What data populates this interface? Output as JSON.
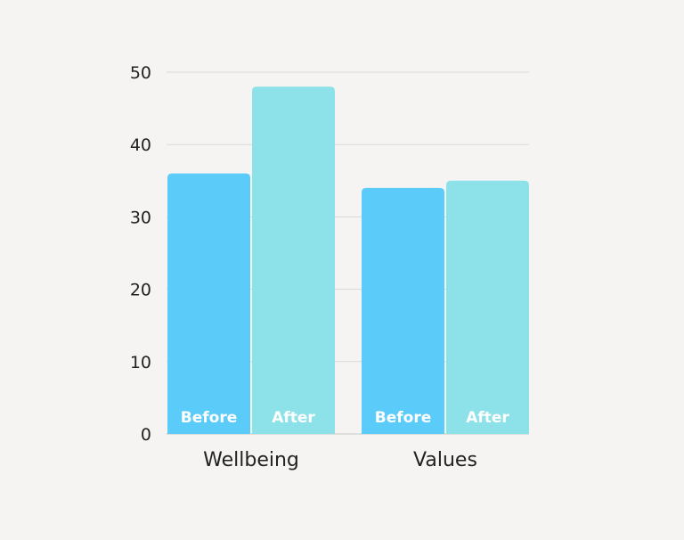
{
  "chart_data": {
    "type": "bar",
    "categories": [
      "Wellbeing",
      "Values"
    ],
    "series": [
      {
        "values": [
          36,
          34
        ],
        "color": "#5bcbfa"
      },
      {
        "values": [
          48,
          35
        ],
        "color": "#8ce2e8"
      }
    ],
    "bar_labels": [
      "Before",
      "After"
    ],
    "y_ticks": [
      0,
      10,
      20,
      30,
      40,
      50
    ],
    "ylim": [
      0,
      50
    ],
    "grid": true,
    "title": "",
    "xlabel": "",
    "ylabel": ""
  }
}
